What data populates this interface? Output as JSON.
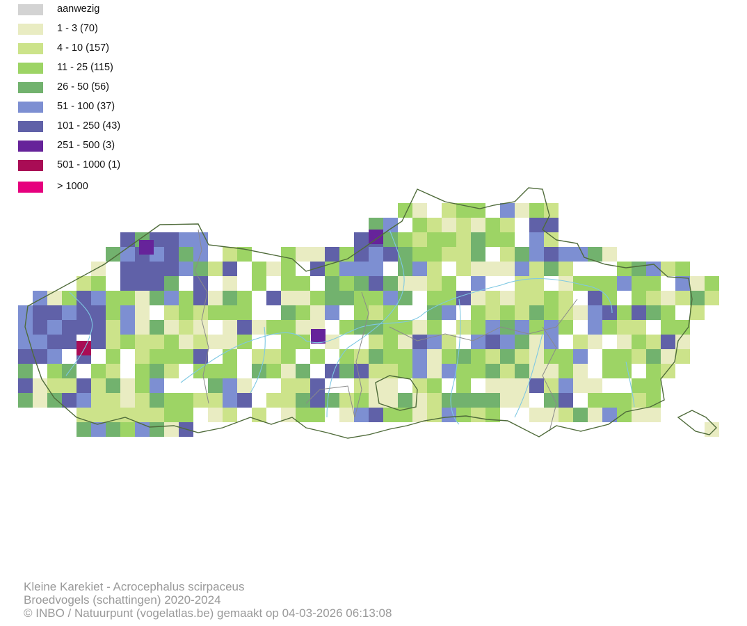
{
  "legend": {
    "items": [
      {
        "label": "aanwezig",
        "color": "#d3d3d3"
      },
      {
        "label": "1 - 3 (70)",
        "color": "#e9ecc2"
      },
      {
        "label": "4 - 10 (157)",
        "color": "#cce38a"
      },
      {
        "label": "11 - 25 (115)",
        "color": "#9dd465"
      },
      {
        "label": "26 - 50 (56)",
        "color": "#72b26e"
      },
      {
        "label": "51 - 100 (37)",
        "color": "#7d8fd2"
      },
      {
        "label": "101 - 250 (43)",
        "color": "#6061a8"
      },
      {
        "label": "251 - 500 (3)",
        "color": "#66239a"
      },
      {
        "label": "501 - 1000 (1)",
        "color": "#a90c55"
      },
      {
        "label": "> 1000",
        "color": "#e6007e"
      }
    ]
  },
  "map": {
    "boundary_color": "#4f6b3a",
    "province_border_color": "#8a8a8a",
    "river_color": "#7ec8e3"
  },
  "credits": {
    "line1": "Kleine Karekiet - Acrocephalus scirpaceus",
    "line2": "Broedvogels (schattingen) 2020-2024",
    "line3": "© INBO / Natuurpunt (vogelatlas.be) gemaakt op 04-03-2026 06:13:08"
  }
}
